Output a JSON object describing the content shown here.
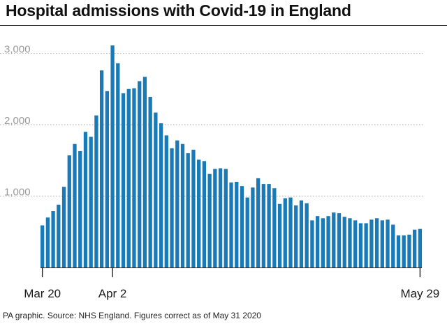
{
  "chart_data": {
    "type": "bar",
    "title": "Hospital admissions with Covid-19 in England",
    "xlabel": "",
    "ylabel": "",
    "ylim": [
      0,
      3200
    ],
    "y_ticks": [
      1000,
      2000,
      3000
    ],
    "y_tick_labels": [
      "1,000",
      "2,000",
      "3,000"
    ],
    "grid": "horizontal dotted",
    "x_tick_labels": [
      {
        "label": "Mar 20",
        "index": 0
      },
      {
        "label": "Apr 2",
        "index": 13
      },
      {
        "label": "May 29",
        "index": 70
      }
    ],
    "categories": [
      "Mar 20",
      "Mar 21",
      "Mar 22",
      "Mar 23",
      "Mar 24",
      "Mar 25",
      "Mar 26",
      "Mar 27",
      "Mar 28",
      "Mar 29",
      "Mar 30",
      "Mar 31",
      "Apr 1",
      "Apr 2",
      "Apr 3",
      "Apr 4",
      "Apr 5",
      "Apr 6",
      "Apr 7",
      "Apr 8",
      "Apr 9",
      "Apr 10",
      "Apr 11",
      "Apr 12",
      "Apr 13",
      "Apr 14",
      "Apr 15",
      "Apr 16",
      "Apr 17",
      "Apr 18",
      "Apr 19",
      "Apr 20",
      "Apr 21",
      "Apr 22",
      "Apr 23",
      "Apr 24",
      "Apr 25",
      "Apr 26",
      "Apr 27",
      "Apr 28",
      "Apr 29",
      "Apr 30",
      "May 1",
      "May 2",
      "May 3",
      "May 4",
      "May 5",
      "May 6",
      "May 7",
      "May 8",
      "May 9",
      "May 10",
      "May 11",
      "May 12",
      "May 13",
      "May 14",
      "May 15",
      "May 16",
      "May 17",
      "May 18",
      "May 19",
      "May 20",
      "May 21",
      "May 22",
      "May 23",
      "May 24",
      "May 25",
      "May 26",
      "May 27",
      "May 28",
      "May 29"
    ],
    "values": [
      590,
      700,
      790,
      880,
      1130,
      1570,
      1730,
      1630,
      1900,
      1830,
      2130,
      2760,
      2470,
      3110,
      2860,
      2440,
      2500,
      2510,
      2610,
      2670,
      2390,
      2170,
      2020,
      1850,
      1670,
      1780,
      1730,
      1600,
      1650,
      1510,
      1490,
      1310,
      1380,
      1390,
      1380,
      1190,
      1200,
      1140,
      980,
      1120,
      1250,
      1170,
      1170,
      1110,
      890,
      970,
      980,
      870,
      940,
      900,
      660,
      720,
      690,
      720,
      770,
      760,
      710,
      690,
      660,
      620,
      620,
      670,
      690,
      660,
      670,
      600,
      450,
      450,
      460,
      530,
      540
    ]
  },
  "source": "PA graphic. Source: NHS England. Figures correct as of May 31 2020",
  "colors": {
    "bar": "#1a7ab8",
    "axis": "#222222",
    "grid": "#aaaaaa",
    "tick_text": "#999999",
    "text": "#1a1a1a"
  }
}
